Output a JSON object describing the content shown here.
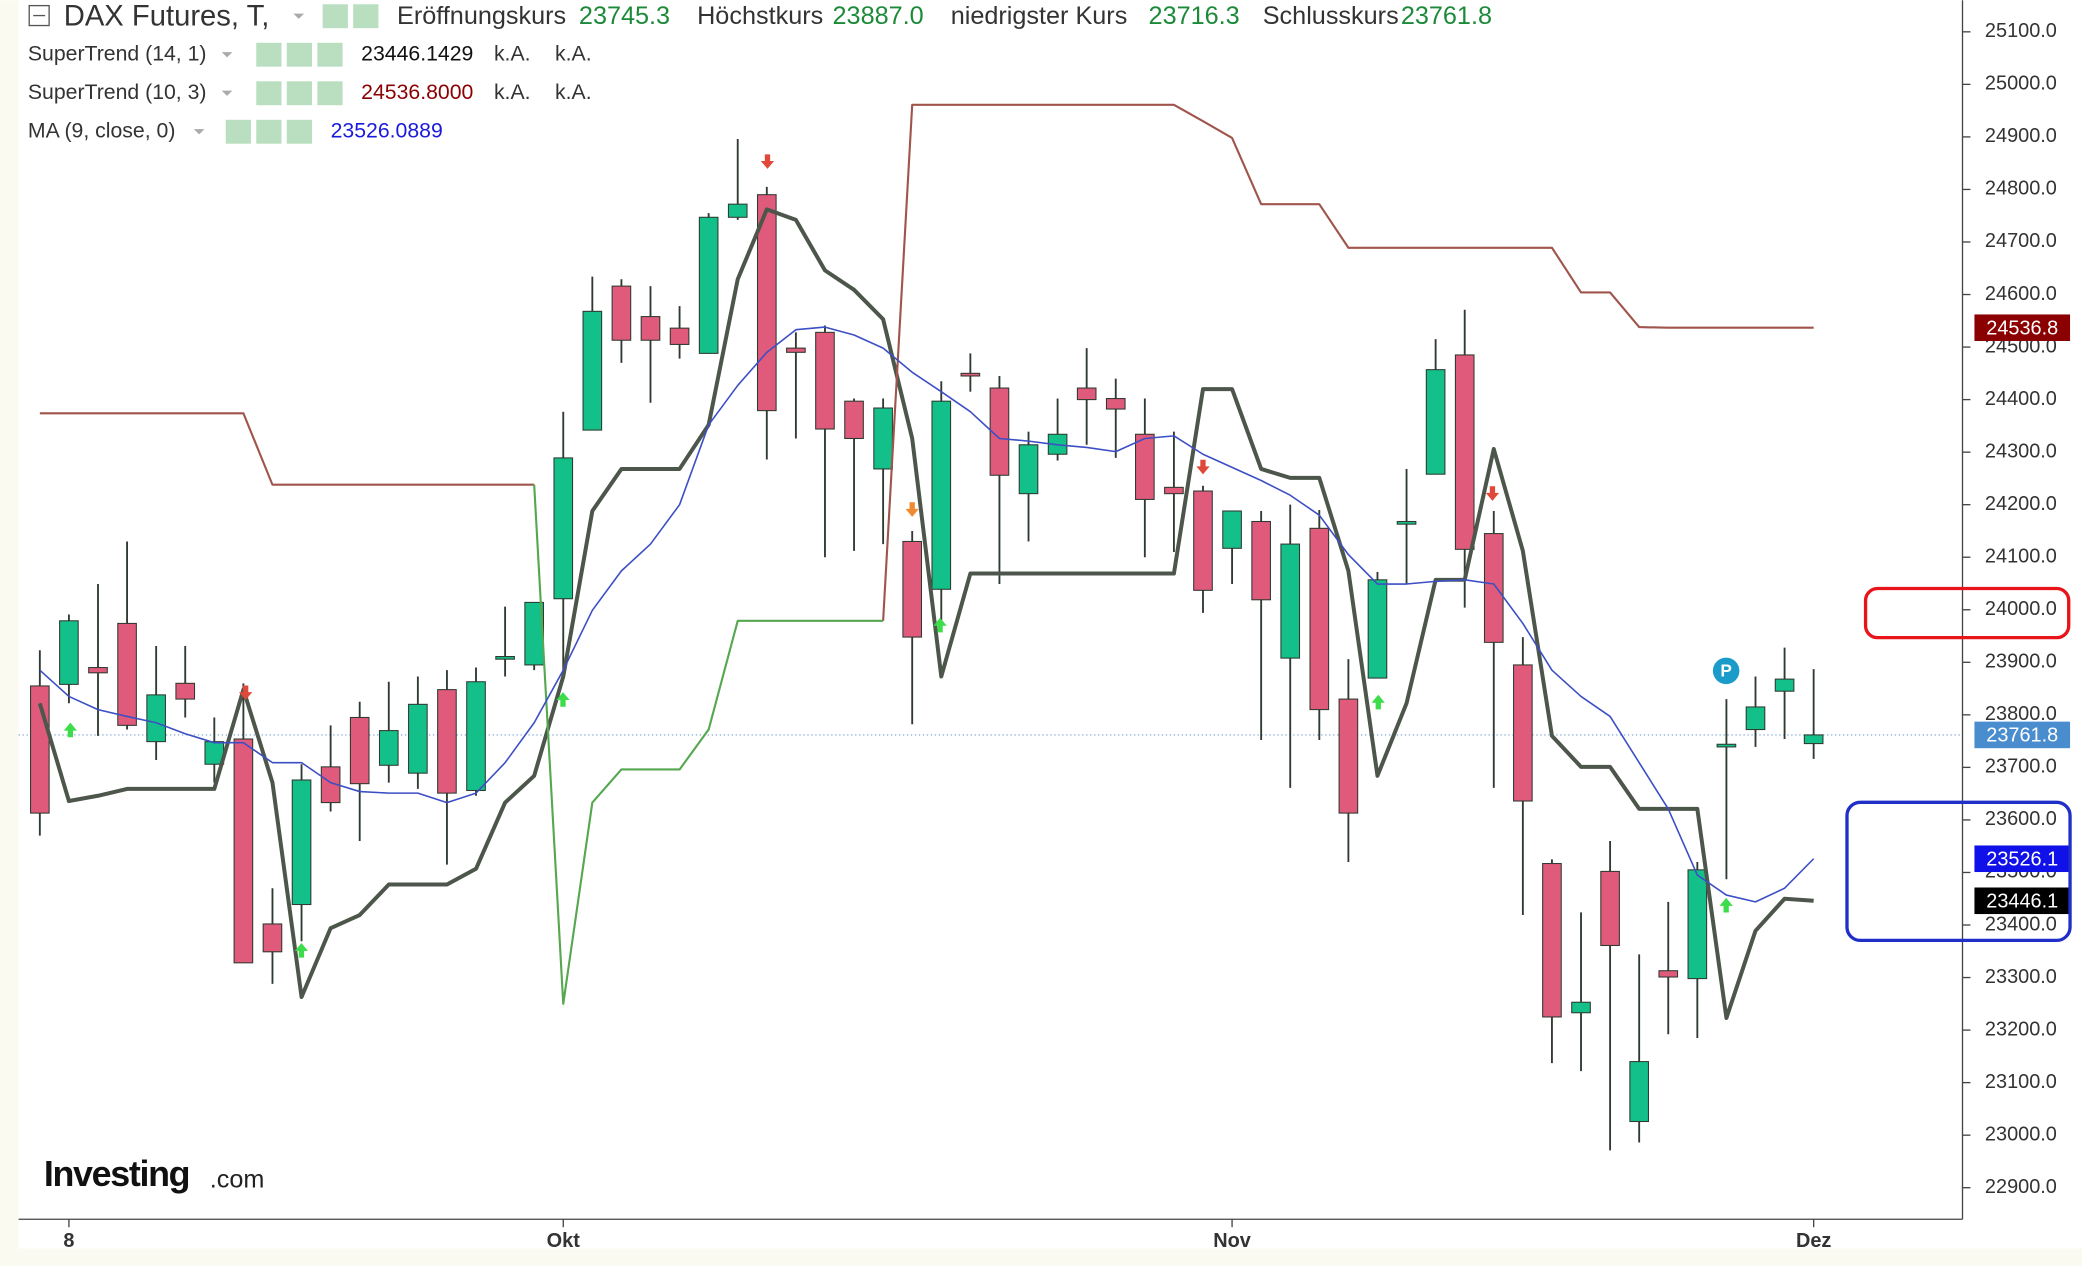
{
  "chart_data": {
    "type": "candlestick",
    "title": "DAX Futures, T,",
    "quote": [
      {
        "name": "Eröffnungskurs",
        "value": 23745.3
      },
      {
        "name": "Höchstkurs",
        "value": 23887,
        "label": "23887.0"
      },
      {
        "name": "niedrigster Kurs",
        "value": 23716.3
      },
      {
        "name": "Schlusskurs",
        "value": 23761.8
      }
    ],
    "indicators": [
      {
        "name": "SuperTrend (14, 1)",
        "value": 23446.1429,
        "value_color": "#111111",
        "extras": [
          "k.A.",
          "k.A."
        ],
        "lines": [
          {
            "color": "#4d564b",
            "width": 3,
            "values": [
              23822,
              23636,
              23646,
              23659,
              23659,
              23659,
              23659,
              23848,
              23671,
              23263,
              23394,
              23419,
              23477,
              23477,
              23477,
              23507,
              23633,
              23684,
              23873,
              24188,
              24268,
              24268,
              24268,
              24352,
              24629,
              24762,
              24742,
              24646,
              24609,
              24553,
              24326,
              23873,
              24069,
              24069,
              24069,
              24069,
              24069,
              24069,
              24069,
              24069,
              24420,
              24420,
              24268,
              24251,
              24251,
              24074,
              23684,
              23822,
              24057,
              24057,
              24306,
              24112,
              23760,
              23701,
              23701,
              23621,
              23621,
              23621,
              23223,
              23389,
              23450,
              23446.1
            ]
          }
        ]
      },
      {
        "name": "SuperTrend (10, 3)",
        "value": 24536.8,
        "label": "24536.8000",
        "value_color": "#8b0000",
        "extras": [
          "k.A.",
          "k.A."
        ],
        "lines": [
          {
            "color": "#a0554c",
            "width": 1.6,
            "values": [
              24374,
              24374,
              24374,
              24374,
              24374,
              24374,
              24374,
              24374,
              24238,
              24238,
              24238,
              24238,
              24238,
              24238,
              24238,
              24238,
              24238,
              24238,
              null,
              null,
              null,
              null,
              null,
              null,
              null,
              null,
              null,
              null,
              null,
              23979,
              24961,
              24961,
              24961,
              24961,
              24961,
              24961,
              24961,
              24961,
              24961,
              24961,
              24930,
              24898,
              24772,
              24772,
              24772,
              24689,
              24689,
              24689,
              24689,
              24689,
              24689,
              24689,
              24689,
              24604,
              24604,
              24538,
              24536.8,
              24536.8,
              24536.8,
              24536.8,
              24536.8,
              24536.8
            ]
          },
          {
            "color": "#55a84f",
            "width": 1.6,
            "values": [
              null,
              null,
              null,
              null,
              null,
              null,
              null,
              null,
              null,
              null,
              null,
              null,
              null,
              null,
              null,
              null,
              null,
              24238,
              23250,
              23633,
              23696,
              23696,
              23696,
              23772,
              23979,
              23979,
              23979,
              23979,
              23979,
              23979,
              null,
              null,
              null,
              null,
              null,
              null,
              null,
              null,
              null,
              null,
              null,
              null,
              null,
              null,
              null,
              null,
              null,
              null,
              null,
              null,
              null,
              null,
              null,
              null,
              null,
              null,
              null,
              null,
              null,
              null,
              null,
              null
            ]
          }
        ]
      },
      {
        "name": "MA (9, close, 0)",
        "value": 23526.0889,
        "value_color": "#1a1adb",
        "extras": [],
        "lines": [
          {
            "color": "#3c4fc4",
            "width": 1.2,
            "values": [
              23885,
              23835,
              23810,
              23797,
              23785,
              23764,
              23747,
              23747,
              23709,
              23709,
              23671,
              23654,
              23651,
              23651,
              23633,
              23651,
              23709,
              23785,
              23885,
              23999,
              24074,
              24125,
              24200,
              24352,
              24427,
              24490,
              24533,
              24538,
              24523,
              24498,
              24452,
              24415,
              24377,
              24326,
              24321,
              24314,
              24309,
              24301,
              24326,
              24331,
              24296,
              24271,
              24246,
              24218,
              24180,
              24105,
              24049,
              24049,
              24054,
              24057,
              24049,
              23974,
              23885,
              23835,
              23797,
              23709,
              23621,
              23495,
              23457,
              23444,
              23470,
              23526.1
            ]
          }
        ]
      }
    ],
    "categories": [
      null,
      "8",
      null,
      null,
      null,
      null,
      null,
      null,
      null,
      null,
      null,
      null,
      null,
      null,
      null,
      null,
      null,
      null,
      "Okt",
      null,
      null,
      null,
      null,
      null,
      null,
      null,
      null,
      null,
      null,
      null,
      null,
      null,
      null,
      null,
      null,
      null,
      null,
      null,
      null,
      null,
      null,
      "Nov",
      null,
      null,
      null,
      null,
      null,
      null,
      null,
      null,
      null,
      null,
      null,
      null,
      null,
      null,
      null,
      null,
      null,
      null,
      null,
      "Dez"
    ],
    "open": [
      23855,
      23858,
      23890,
      23974,
      23749,
      23860,
      23706,
      23754,
      23402,
      23439,
      23701,
      23795,
      23704,
      23689,
      23848,
      23656,
      23908,
      23895,
      24021,
      24342,
      24616,
      24558,
      24536,
      24488,
      24747,
      24790,
      24498,
      24528,
      24397,
      24268,
      24130,
      24039,
      24450,
      24422,
      24221,
      24296,
      24422,
      24402,
      24334,
      24233,
      24226,
      24117,
      24168,
      23908,
      24155,
      23830,
      23870,
      24163,
      24258,
      24485,
      24145,
      23895,
      23517,
      23233,
      23502,
      23026,
      23313,
      23298,
      23739,
      23772,
      23845,
      23745.3
    ],
    "high": [
      23923,
      23991,
      24049,
      24130,
      23931,
      23931,
      23795,
      23860,
      23470,
      23706,
      23780,
      23825,
      23863,
      23873,
      23885,
      23890,
      24006,
      24014,
      24377,
      24634,
      24629,
      24616,
      24578,
      24755,
      24896,
      24805,
      24528,
      24541,
      24402,
      24402,
      24150,
      24435,
      24488,
      24445,
      24339,
      24402,
      24498,
      24440,
      24402,
      24339,
      24236,
      24188,
      24188,
      24200,
      24190,
      23906,
      24072,
      24268,
      24515,
      24571,
      24188,
      23948,
      23525,
      23424,
      23560,
      23344,
      23444,
      23520,
      23830,
      23873,
      23928,
      23887
    ],
    "low": [
      23570,
      23822,
      23760,
      23772,
      23714,
      23795,
      23671,
      23328,
      23288,
      23369,
      23616,
      23560,
      23671,
      23659,
      23515,
      23646,
      23873,
      23885,
      23873,
      24342,
      24470,
      24394,
      24478,
      24488,
      24742,
      24286,
      24326,
      24100,
      24112,
      24125,
      23782,
      23969,
      24415,
      24049,
      24130,
      24284,
      24314,
      24289,
      24100,
      24110,
      23994,
      24049,
      23752,
      23661,
      23752,
      23520,
      23870,
      24049,
      24258,
      24004,
      23661,
      23419,
      23137,
      23122,
      22971,
      22986,
      23192,
      23185,
      23487,
      23739,
      23754,
      23716.3
    ],
    "close": [
      23613,
      23979,
      23880,
      23780,
      23838,
      23830,
      23749,
      23328,
      23349,
      23676,
      23633,
      23669,
      23770,
      23820,
      23651,
      23863,
      23911,
      24014,
      24289,
      24568,
      24513,
      24513,
      24505,
      24747,
      24772,
      24379,
      24490,
      24344,
      24326,
      24384,
      23948,
      24397,
      24447,
      24256,
      24314,
      24334,
      24400,
      24382,
      24210,
      24221,
      24037,
      24188,
      24019,
      24125,
      23810,
      23613,
      24057,
      24168,
      24457,
      24115,
      23938,
      23636,
      23225,
      23253,
      23361,
      23140,
      23301,
      23505,
      23744,
      23815,
      23868,
      23761.8
    ],
    "up_color": "#14c08a",
    "down_color": "#e05a7c",
    "ylim": [
      22840,
      25160
    ],
    "yticks": [
      {
        "value": 22900,
        "label": "22900.0"
      },
      {
        "value": 23000,
        "label": "23000.0"
      },
      {
        "value": 23100,
        "label": "23100.0"
      },
      {
        "value": 23200,
        "label": "23200.0"
      },
      {
        "value": 23300,
        "label": "23300.0"
      },
      {
        "value": 23400,
        "label": "23400.0"
      },
      {
        "value": 23500,
        "label": "23500.0"
      },
      {
        "value": 23600,
        "label": "23600.0"
      },
      {
        "value": 23700,
        "label": "23700.0"
      },
      {
        "value": 23800,
        "label": "23800.0"
      },
      {
        "value": 23900,
        "label": "23900.0"
      },
      {
        "value": 24000,
        "label": "24000.0"
      },
      {
        "value": 24100,
        "label": "24100.0"
      },
      {
        "value": 24200,
        "label": "24200.0"
      },
      {
        "value": 24300,
        "label": "24300.0"
      },
      {
        "value": 24400,
        "label": "24400.0"
      },
      {
        "value": 24500,
        "label": "24500.0"
      },
      {
        "value": 24600,
        "label": "24600.0"
      },
      {
        "value": 24700,
        "label": "24700.0"
      },
      {
        "value": 24800,
        "label": "24800.0"
      },
      {
        "value": 24900,
        "label": "24900.0"
      },
      {
        "value": 25000,
        "label": "25000.0"
      },
      {
        "value": 25100,
        "label": "25100.0"
      }
    ],
    "price_badges": [
      {
        "value": 24536.8,
        "color": "#8b0000"
      },
      {
        "value": 23761.8,
        "color": "#4a8dcf"
      },
      {
        "value": 23526.1,
        "color": "#1010e8"
      },
      {
        "value": 23446.1,
        "color": "#000000"
      }
    ],
    "marker_label": "P",
    "logo": {
      "brand": "Investing",
      "suffix": ".com"
    }
  }
}
